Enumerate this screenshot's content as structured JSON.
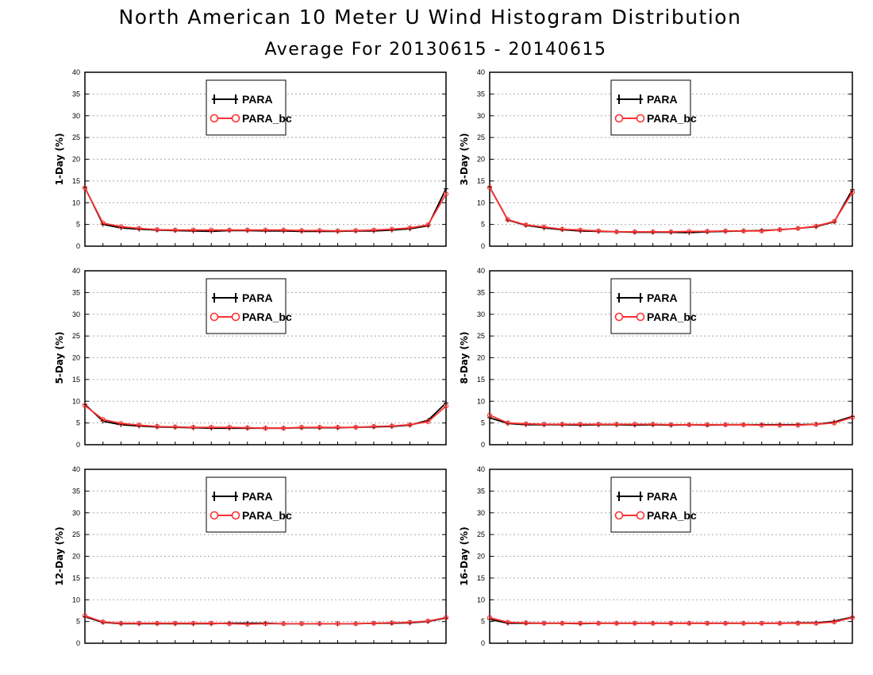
{
  "figure": {
    "title": "North American 10 Meter U Wind Histogram Distribution",
    "subtitle": "Average For 20130615 - 20140615"
  },
  "colors": {
    "PARA": "#000000",
    "PARA_bc": "#ff3030",
    "grid": "#aaaaaa"
  },
  "chart_data": [
    {
      "type": "line",
      "ylabel": "1-Day (%)",
      "ylim": [
        0,
        40
      ],
      "yticks": [
        0,
        5,
        10,
        15,
        20,
        25,
        30,
        35,
        40
      ],
      "grid": "horizontal dotted",
      "legend": "top-center",
      "x": [
        1,
        2,
        3,
        4,
        5,
        6,
        7,
        8,
        9,
        10,
        11,
        12,
        13,
        14,
        15,
        16,
        17,
        18,
        19,
        20,
        21
      ],
      "series": [
        {
          "name": "PARA",
          "values": [
            13.5,
            5.0,
            4.2,
            3.9,
            3.7,
            3.6,
            3.5,
            3.4,
            3.6,
            3.6,
            3.5,
            3.5,
            3.4,
            3.4,
            3.4,
            3.5,
            3.5,
            3.7,
            4.0,
            4.7,
            13.2
          ]
        },
        {
          "name": "PARA_bc",
          "values": [
            13.4,
            5.3,
            4.5,
            4.1,
            3.8,
            3.7,
            3.7,
            3.7,
            3.7,
            3.7,
            3.7,
            3.7,
            3.6,
            3.6,
            3.5,
            3.6,
            3.7,
            3.9,
            4.2,
            4.9,
            12.0
          ]
        }
      ]
    },
    {
      "type": "line",
      "ylabel": "3-Day (%)",
      "ylim": [
        0,
        40
      ],
      "yticks": [
        0,
        5,
        10,
        15,
        20,
        25,
        30,
        35,
        40
      ],
      "grid": "horizontal dotted",
      "legend": "top-center",
      "x": [
        1,
        2,
        3,
        4,
        5,
        6,
        7,
        8,
        9,
        10,
        11,
        12,
        13,
        14,
        15,
        16,
        17,
        18,
        19,
        20,
        21
      ],
      "series": [
        {
          "name": "PARA",
          "values": [
            13.6,
            6.0,
            4.8,
            4.2,
            3.8,
            3.5,
            3.4,
            3.3,
            3.2,
            3.2,
            3.2,
            3.1,
            3.3,
            3.4,
            3.5,
            3.6,
            3.8,
            4.1,
            4.5,
            5.6,
            13.0
          ]
        },
        {
          "name": "PARA_bc",
          "values": [
            13.5,
            6.1,
            4.9,
            4.4,
            3.9,
            3.7,
            3.5,
            3.3,
            3.3,
            3.3,
            3.3,
            3.4,
            3.4,
            3.5,
            3.5,
            3.5,
            3.8,
            4.1,
            4.6,
            5.7,
            12.4
          ]
        }
      ]
    },
    {
      "type": "line",
      "ylabel": "5-Day (%)",
      "ylim": [
        0,
        40
      ],
      "yticks": [
        0,
        5,
        10,
        15,
        20,
        25,
        30,
        35,
        40
      ],
      "grid": "horizontal dotted",
      "legend": "top-center",
      "x": [
        1,
        2,
        3,
        4,
        5,
        6,
        7,
        8,
        9,
        10,
        11,
        12,
        13,
        14,
        15,
        16,
        17,
        18,
        19,
        20,
        21
      ],
      "series": [
        {
          "name": "PARA",
          "values": [
            9.3,
            5.4,
            4.6,
            4.3,
            4.1,
            4.0,
            3.9,
            3.8,
            3.8,
            3.8,
            3.8,
            3.8,
            3.9,
            3.9,
            3.9,
            4.0,
            4.1,
            4.2,
            4.5,
            5.6,
            9.6
          ]
        },
        {
          "name": "PARA_bc",
          "values": [
            9.0,
            5.8,
            4.9,
            4.5,
            4.2,
            4.1,
            4.0,
            4.0,
            4.0,
            3.9,
            3.8,
            3.8,
            4.0,
            4.0,
            4.0,
            4.0,
            4.2,
            4.3,
            4.6,
            5.3,
            8.9
          ]
        }
      ]
    },
    {
      "type": "line",
      "ylabel": "8-Day (%)",
      "ylim": [
        0,
        40
      ],
      "yticks": [
        0,
        5,
        10,
        15,
        20,
        25,
        30,
        35,
        40
      ],
      "grid": "horizontal dotted",
      "legend": "top-center",
      "x": [
        1,
        2,
        3,
        4,
        5,
        6,
        7,
        8,
        9,
        10,
        11,
        12,
        13,
        14,
        15,
        16,
        17,
        18,
        19,
        20,
        21
      ],
      "series": [
        {
          "name": "PARA",
          "values": [
            6.2,
            4.9,
            4.6,
            4.6,
            4.6,
            4.5,
            4.6,
            4.6,
            4.5,
            4.6,
            4.5,
            4.6,
            4.5,
            4.6,
            4.6,
            4.6,
            4.6,
            4.6,
            4.7,
            5.2,
            6.5
          ]
        },
        {
          "name": "PARA_bc",
          "values": [
            6.8,
            5.0,
            4.8,
            4.7,
            4.7,
            4.7,
            4.7,
            4.7,
            4.7,
            4.7,
            4.6,
            4.6,
            4.6,
            4.6,
            4.6,
            4.5,
            4.5,
            4.5,
            4.7,
            5.0,
            6.3
          ]
        }
      ]
    },
    {
      "type": "line",
      "ylabel": "12-Day (%)",
      "ylim": [
        0,
        40
      ],
      "yticks": [
        0,
        5,
        10,
        15,
        20,
        25,
        30,
        35,
        40
      ],
      "grid": "horizontal dotted",
      "legend": "top-center",
      "x": [
        1,
        2,
        3,
        4,
        5,
        6,
        7,
        8,
        9,
        10,
        11,
        12,
        13,
        14,
        15,
        16,
        17,
        18,
        19,
        20,
        21
      ],
      "series": [
        {
          "name": "PARA",
          "values": [
            6.1,
            4.8,
            4.5,
            4.5,
            4.5,
            4.5,
            4.5,
            4.5,
            4.6,
            4.6,
            4.6,
            4.5,
            4.5,
            4.5,
            4.5,
            4.5,
            4.6,
            4.6,
            4.7,
            5.0,
            5.8
          ]
        },
        {
          "name": "PARA_bc",
          "values": [
            6.3,
            4.9,
            4.6,
            4.6,
            4.6,
            4.6,
            4.6,
            4.6,
            4.5,
            4.4,
            4.5,
            4.5,
            4.5,
            4.5,
            4.5,
            4.5,
            4.6,
            4.7,
            4.8,
            5.1,
            5.9
          ]
        }
      ]
    },
    {
      "type": "line",
      "ylabel": "16-Day (%)",
      "ylim": [
        0,
        40
      ],
      "yticks": [
        0,
        5,
        10,
        15,
        20,
        25,
        30,
        35,
        40
      ],
      "grid": "horizontal dotted",
      "legend": "top-center",
      "x": [
        1,
        2,
        3,
        4,
        5,
        6,
        7,
        8,
        9,
        10,
        11,
        12,
        13,
        14,
        15,
        16,
        17,
        18,
        19,
        20,
        21
      ],
      "series": [
        {
          "name": "PARA",
          "values": [
            5.5,
            4.6,
            4.6,
            4.6,
            4.6,
            4.5,
            4.6,
            4.6,
            4.6,
            4.6,
            4.6,
            4.6,
            4.6,
            4.6,
            4.6,
            4.6,
            4.6,
            4.7,
            4.7,
            5.1,
            6.0
          ]
        },
        {
          "name": "PARA_bc",
          "values": [
            5.9,
            4.8,
            4.7,
            4.6,
            4.6,
            4.6,
            4.6,
            4.6,
            4.6,
            4.6,
            4.6,
            4.6,
            4.6,
            4.6,
            4.6,
            4.6,
            4.6,
            4.6,
            4.6,
            4.9,
            5.9
          ]
        }
      ]
    }
  ]
}
